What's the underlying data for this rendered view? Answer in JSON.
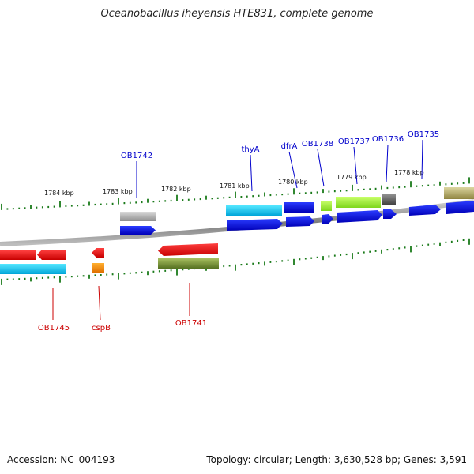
{
  "title": "Oceanobacillus iheyensis HTE831, complete genome",
  "footer": {
    "accession": "Accession: NC_004193",
    "summary": "Topology: circular; Length: 3,630,528 bp; Genes: 3,591"
  },
  "ruler_labels": [
    "1784 kbp",
    "1783 kbp",
    "1782 kbp",
    "1781 kbp",
    "1780 kbp",
    "1779 kbp",
    "1778 kbp"
  ],
  "gene_labels_top": [
    "OB1742",
    "thyA",
    "dfrA",
    "OB1738",
    "OB1737",
    "OB1736",
    "OB1735"
  ],
  "gene_labels_bottom": [
    "OB1745",
    "cspB",
    "OB1741"
  ],
  "colors": {
    "label_top": "#0000cc",
    "label_bottom": "#cc0000",
    "tick": "#1a7a1a",
    "backbone": "#8a8a8a"
  }
}
